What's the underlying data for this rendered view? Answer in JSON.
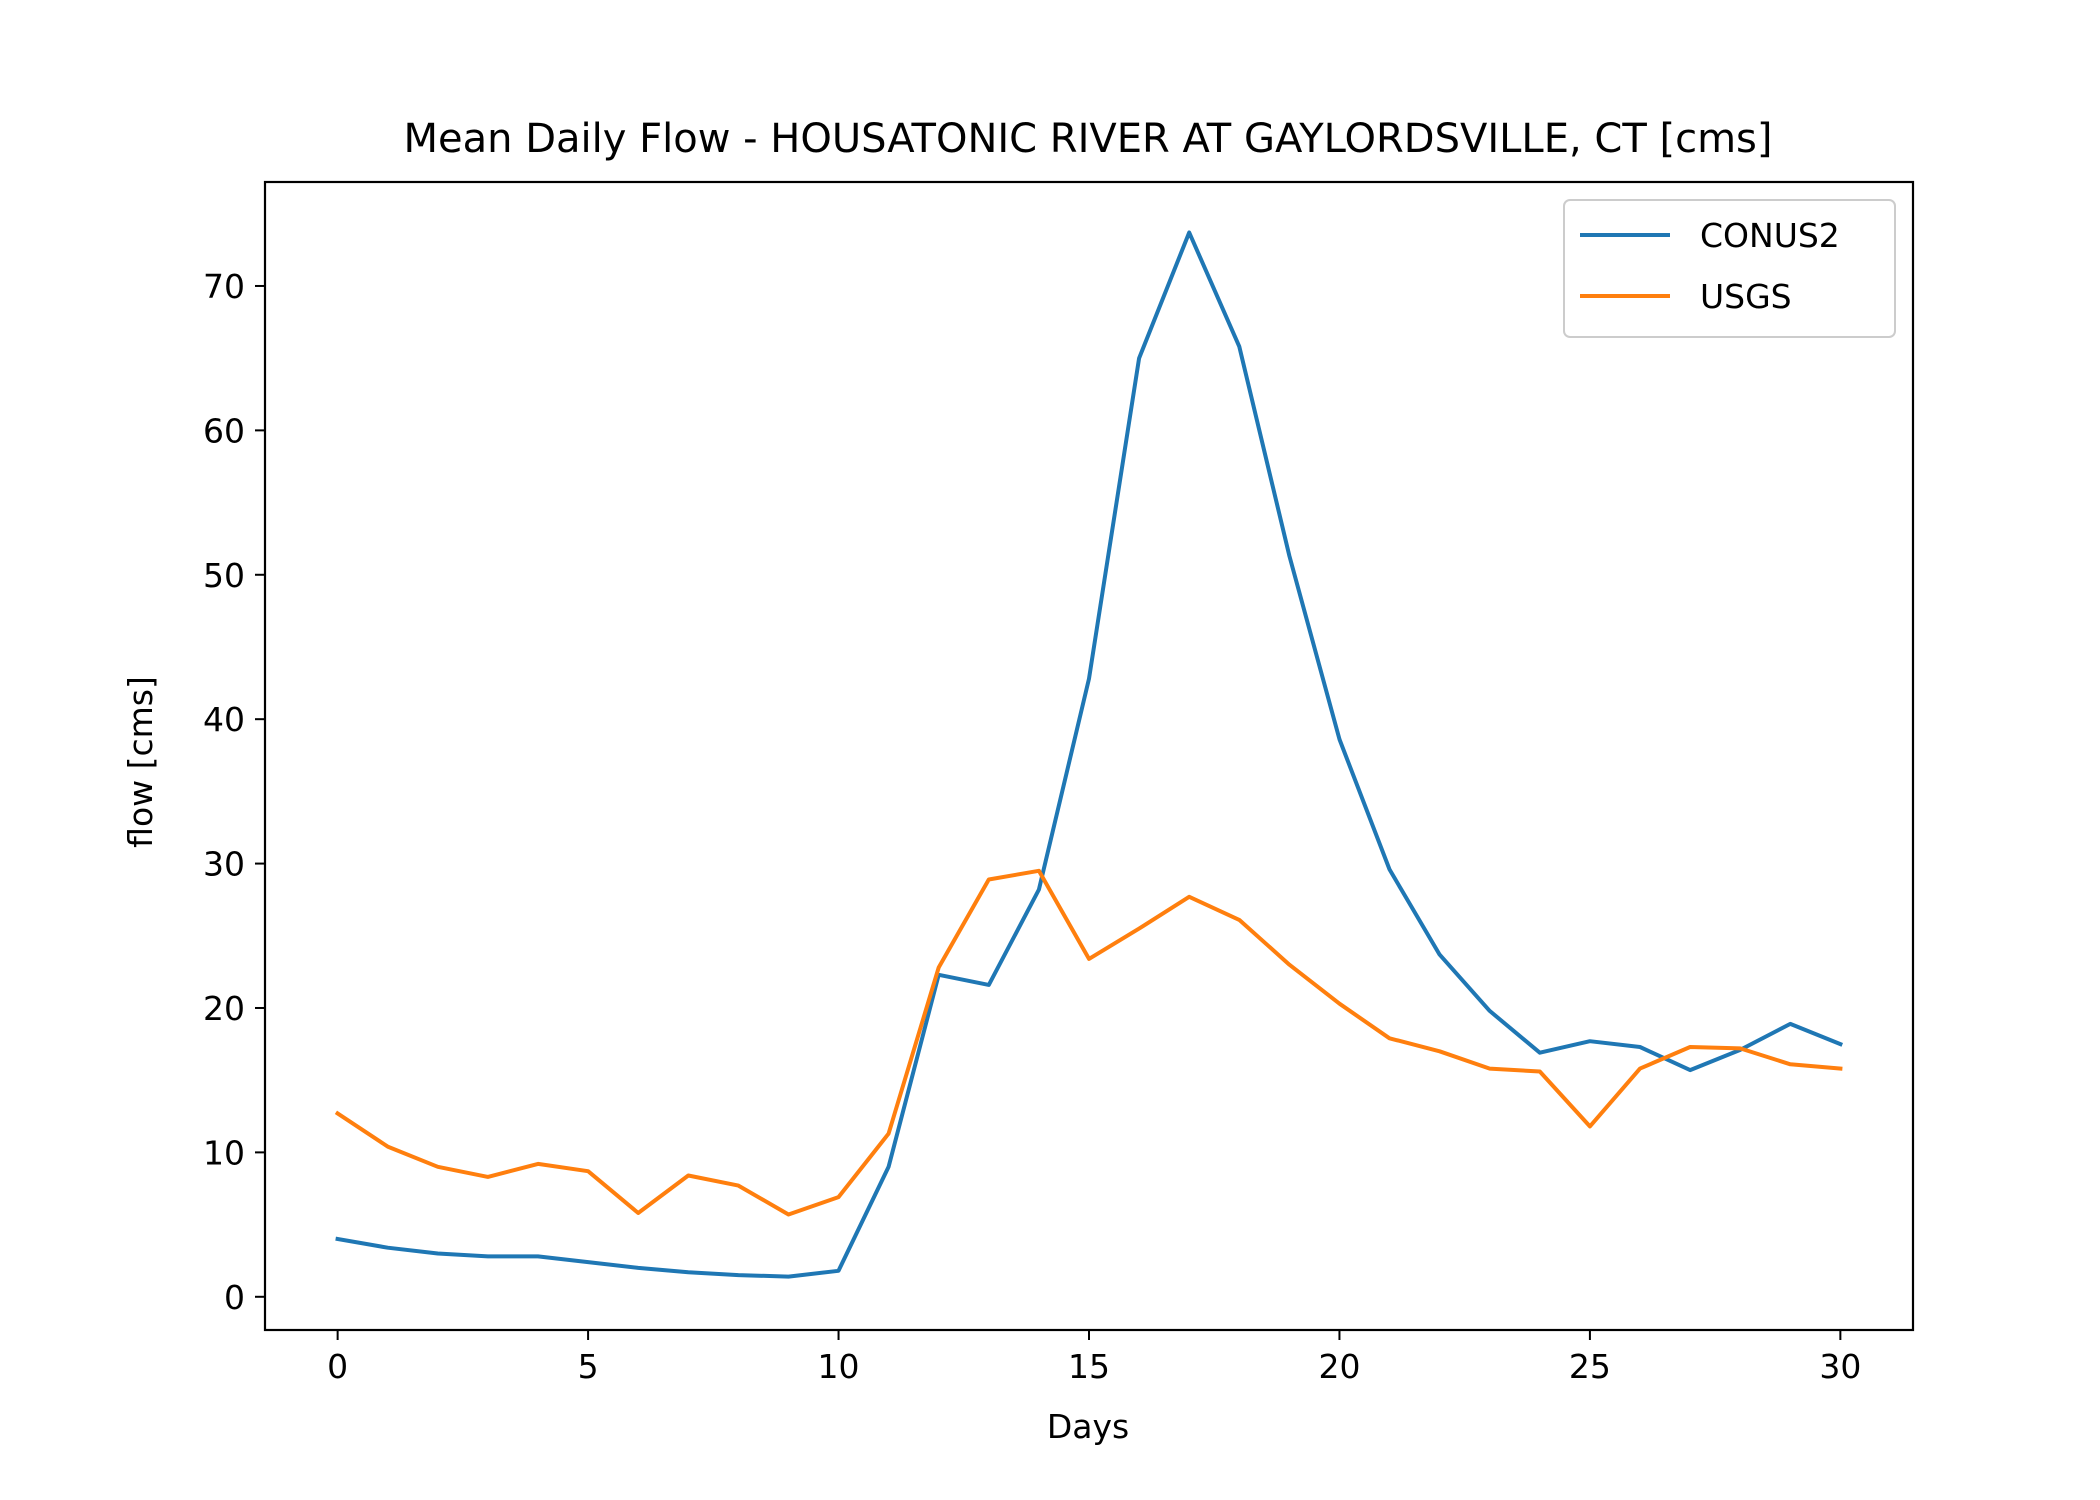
{
  "chart_data": {
    "type": "line",
    "title": "Mean Daily Flow - HOUSATONIC RIVER AT GAYLORDSVILLE, CT [cms]",
    "xlabel": "Days",
    "ylabel": "flow [cms]",
    "xlim": [
      -1.45,
      31.45
    ],
    "ylim": [
      -2.3,
      77.2
    ],
    "xticks": [
      0,
      5,
      10,
      15,
      20,
      25,
      30
    ],
    "yticks": [
      0,
      10,
      20,
      30,
      40,
      50,
      60,
      70
    ],
    "grid": false,
    "legend_position": "top-right",
    "x": [
      0,
      1,
      2,
      3,
      4,
      5,
      6,
      7,
      8,
      9,
      10,
      11,
      12,
      13,
      14,
      15,
      16,
      17,
      18,
      19,
      20,
      21,
      22,
      23,
      24,
      25,
      26,
      27,
      28,
      29,
      30
    ],
    "series": [
      {
        "name": "CONUS2",
        "color": "#1f77b4",
        "values": [
          4.0,
          3.4,
          3.0,
          2.8,
          2.8,
          2.4,
          2.0,
          1.7,
          1.5,
          1.4,
          1.8,
          9.0,
          22.3,
          21.6,
          28.2,
          42.8,
          65.0,
          73.7,
          65.8,
          51.3,
          38.6,
          29.6,
          23.7,
          19.8,
          16.9,
          17.7,
          17.3,
          15.7,
          17.1,
          18.9,
          17.5
        ]
      },
      {
        "name": "USGS",
        "color": "#ff7f0e",
        "values": [
          12.7,
          10.4,
          9.0,
          8.3,
          9.2,
          8.7,
          5.8,
          8.4,
          7.7,
          5.7,
          6.9,
          11.3,
          22.8,
          28.9,
          29.5,
          23.4,
          25.5,
          27.7,
          26.1,
          23.0,
          20.3,
          17.9,
          17.0,
          15.8,
          15.6,
          11.8,
          15.8,
          17.3,
          17.2,
          16.1,
          15.8
        ]
      }
    ]
  }
}
